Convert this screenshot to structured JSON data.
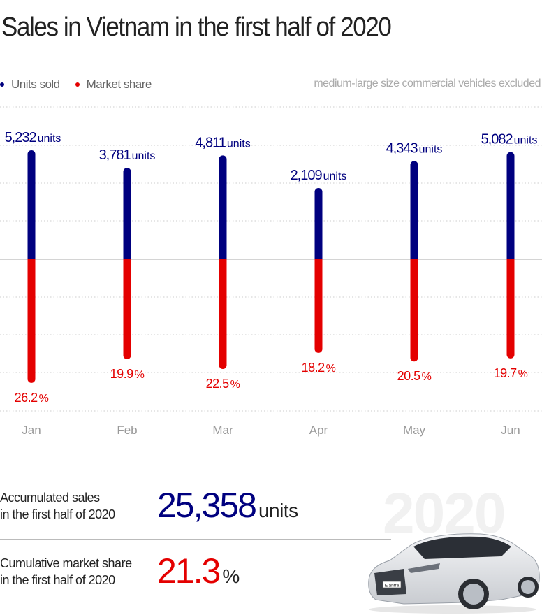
{
  "title": "Sales in Vietnam in the first half of 2020",
  "legend": [
    {
      "label": "Units sold",
      "color": "#00007f"
    },
    {
      "label": "Market share",
      "color": "#e40000"
    }
  ],
  "note": "medium-large size commercial vehicles excluded",
  "colors": {
    "units": "#00007f",
    "share": "#e40000",
    "month": "#999999",
    "grid": "#cccccc",
    "axis": "#aaaaaa"
  },
  "chart_data": {
    "type": "bar",
    "title": "Sales in Vietnam in the first half of 2020",
    "categories": [
      "Jan",
      "Feb",
      "Mar",
      "Apr",
      "May",
      "Jun"
    ],
    "series": [
      {
        "name": "Units sold",
        "unit": "units",
        "values": [
          5232,
          3781,
          4811,
          2109,
          4343,
          5082
        ],
        "labels": [
          "5,232",
          "3,781",
          "4,811",
          "2,109",
          "4,343",
          "5,082"
        ]
      },
      {
        "name": "Market share",
        "unit": "%",
        "values": [
          26.2,
          19.9,
          22.5,
          18.2,
          20.5,
          19.7
        ],
        "labels": [
          "26.2",
          "19.9",
          "22.5",
          "18.2",
          "20.5",
          "19.7"
        ]
      }
    ],
    "layout": "diverging: units sold above baseline, market share below baseline",
    "grid": true,
    "legend_position": "top-left"
  },
  "summary": {
    "sales": {
      "label_line1": "Accumulated sales",
      "label_line2": "in the first half of 2020",
      "value": "25,358",
      "unit": "units"
    },
    "share": {
      "label_line1": "Cumulative market share",
      "label_line2": "in the first half of 2020",
      "value": "21.3",
      "unit": "%"
    }
  },
  "car": {
    "badge": "Elantra",
    "watermark": "2020"
  }
}
